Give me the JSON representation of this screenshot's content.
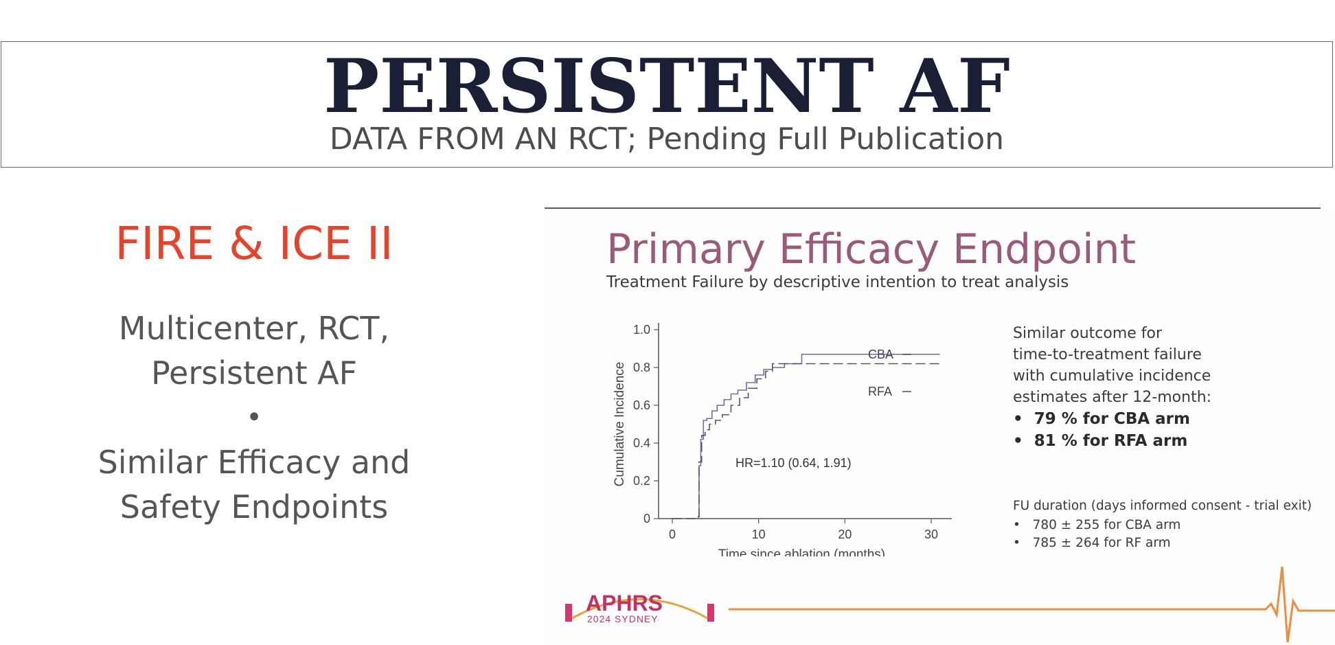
{
  "header": {
    "title": "PERSISTENT AF",
    "subtitle": "DATA FROM AN RCT; Pending Full Publication"
  },
  "left": {
    "trial_name": "FIRE & ICE II",
    "desc_line1": "Multicenter, RCT,",
    "desc_line2": "Persistent AF",
    "bullet": "•",
    "desc_line3": "Similar Efficacy and",
    "desc_line4": "Safety Endpoints"
  },
  "slide": {
    "title": "Primary Efficacy Endpoint",
    "subtitle": "Treatment Failure by descriptive intention to treat analysis",
    "notes": {
      "line1": "Similar outcome for",
      "line2": "time-to-treatment failure",
      "line3": "with cumulative incidence",
      "line4": "estimates after 12-month:",
      "bullet1": "79 % for CBA arm",
      "bullet2": "81 % for RFA arm"
    },
    "fu": {
      "heading": "FU duration (days informed consent - trial exit)",
      "item1": "780 ± 255 for CBA arm",
      "item2": "785 ± 264 for RF arm"
    },
    "footer": {
      "logo_text": "APHRS",
      "logo_sub": "2024 SYDNEY",
      "line_color": "#f08a3c"
    }
  },
  "chart_data": {
    "type": "line",
    "xlabel": "Time since ablation (months)",
    "ylabel": "Cumulative Incidence",
    "xlim": [
      0,
      30
    ],
    "ylim": [
      0,
      1.0
    ],
    "x_ticks": [
      "0",
      "10",
      "20",
      "30"
    ],
    "y_ticks": [
      "0",
      "0.2",
      "0.4",
      "0.6",
      "0.8",
      "1.0"
    ],
    "annotation": "HR=1.10 (0.64, 1.91)",
    "series": [
      {
        "name": "CBA",
        "style": "solid",
        "color": "#6a6fae",
        "x": [
          0,
          3,
          3.1,
          3.3,
          3.6,
          4,
          4.6,
          5.2,
          6,
          6.8,
          7.6,
          8.6,
          9.6,
          10.6,
          11.6,
          13,
          15,
          31
        ],
        "y": [
          0,
          0.01,
          0.28,
          0.42,
          0.52,
          0.53,
          0.57,
          0.6,
          0.63,
          0.66,
          0.68,
          0.72,
          0.76,
          0.79,
          0.8,
          0.82,
          0.87,
          0.87
        ]
      },
      {
        "name": "RFA",
        "style": "dashed",
        "color": "#555555",
        "x": [
          0,
          3,
          3.1,
          3.4,
          3.8,
          4.3,
          5,
          5.8,
          6.8,
          7.8,
          8.8,
          9.8,
          10.8,
          11.6,
          13,
          31
        ],
        "y": [
          0,
          0.01,
          0.3,
          0.44,
          0.47,
          0.5,
          0.52,
          0.55,
          0.6,
          0.64,
          0.69,
          0.74,
          0.78,
          0.82,
          0.82,
          0.82
        ]
      }
    ]
  }
}
